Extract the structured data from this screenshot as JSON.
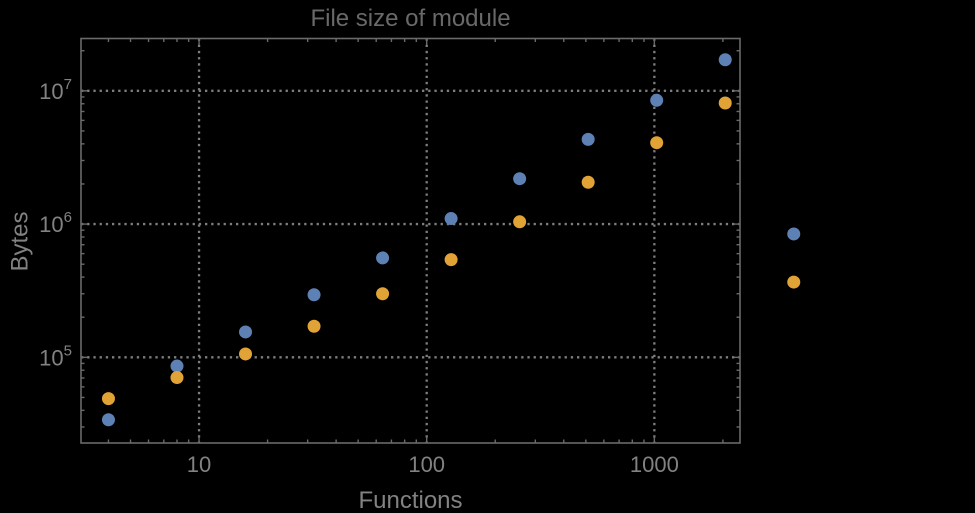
{
  "page": {
    "background": "#000000"
  },
  "chart": {
    "title": "File size of module",
    "xlabel": "Functions",
    "ylabel": "Bytes"
  },
  "chart_data": {
    "type": "scatter",
    "title": "File size of module",
    "xlabel": "Functions",
    "ylabel": "Bytes",
    "x_scale": "log",
    "y_scale": "log",
    "xlim": [
      3.03,
      2378
    ],
    "ylim": [
      22750,
      24700000
    ],
    "grid": {
      "style": "dotted",
      "x_values": [
        10,
        100,
        1000
      ],
      "y_values": [
        100000,
        1000000,
        10000000
      ]
    },
    "legend": "none",
    "x": [
      4,
      8,
      16,
      32,
      64,
      128,
      256,
      512,
      1024,
      2048,
      4096
    ],
    "series": [
      {
        "name": "blue",
        "color": "#5e81b5",
        "values": [
          34000,
          86000,
          155000,
          295000,
          557000,
          1100000,
          2190000,
          4320000,
          8490000,
          17100000,
          843000
        ]
      },
      {
        "name": "orange",
        "color": "#e2a336",
        "values": [
          49000,
          70500,
          106000,
          171000,
          300000,
          541000,
          1040000,
          2060000,
          4080000,
          8100000,
          367000
        ]
      }
    ],
    "x_ticks": [
      {
        "value": 10,
        "label": "10"
      },
      {
        "value": 100,
        "label": "100"
      },
      {
        "value": 1000,
        "label": "1000"
      }
    ],
    "y_ticks": [
      {
        "value": 100000,
        "base": "10",
        "exp": "5"
      },
      {
        "value": 1000000,
        "base": "10",
        "exp": "6"
      },
      {
        "value": 10000000,
        "base": "10",
        "exp": "7"
      }
    ],
    "colors": {
      "background": "#000000",
      "frame": "#6a6a6a",
      "grid": "#7d7d7d",
      "tick_text": "#828282",
      "title_text": "#696969"
    },
    "point_radius": 6.5,
    "note": "last data pair (x=4096) rendered outside right frame edge (no plot-range clipping)"
  }
}
